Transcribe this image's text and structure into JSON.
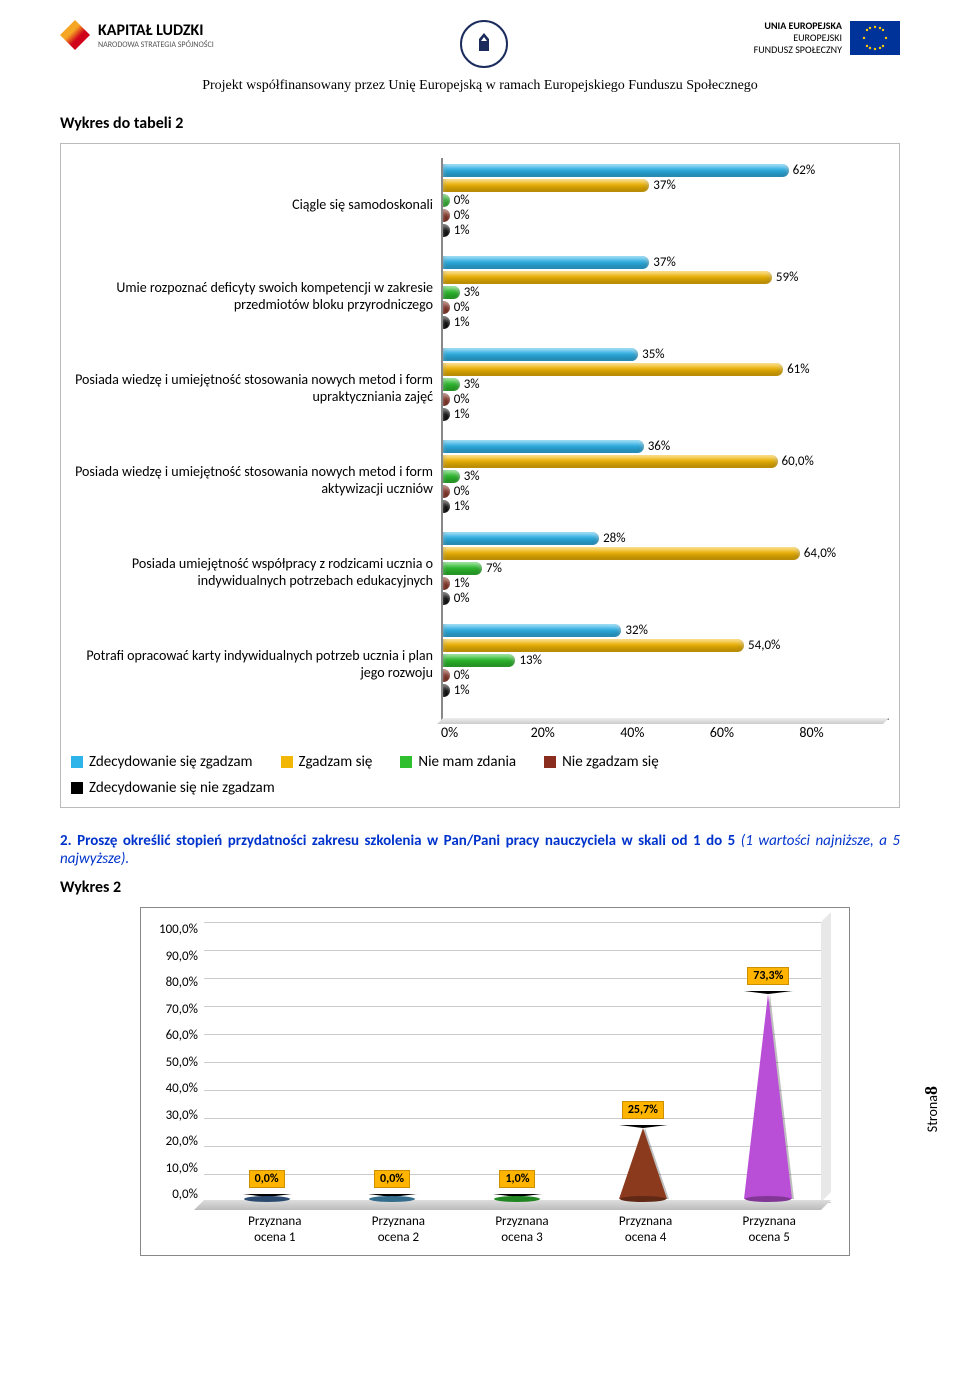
{
  "header": {
    "kl_title": "KAPITAŁ LUDZKI",
    "kl_sub": "NARODOWA STRATEGIA SPÓJNOŚCI",
    "eu_l1": "UNIA EUROPEJSKA",
    "eu_l2": "EUROPEJSKI",
    "eu_l3": "FUNDUSZ SPOŁECZNY",
    "subtitle": "Projekt współfinansowany przez Unię Europejską w ramach Europejskiego Funduszu Społecznego"
  },
  "chart1": {
    "title": "Wykres do tabeli 2",
    "xmax": 80,
    "xticks": [
      "0%",
      "20%",
      "40%",
      "60%",
      "80%"
    ],
    "series": [
      {
        "name": "Zdecydowanie się  zgadzam",
        "color": "#2fb4e9"
      },
      {
        "name": "Zgadzam się",
        "color": "#f2b705"
      },
      {
        "name": "Nie mam zdania",
        "color": "#2fbf2f"
      },
      {
        "name": "Nie zgadzam się",
        "color": "#8b2d1e"
      },
      {
        "name": "Zdecydowanie się nie zgadzam",
        "color": "#000000"
      }
    ],
    "groups": [
      {
        "label": "Ciągle się samodoskonali",
        "vals": [
          62,
          37,
          0,
          0,
          1
        ],
        "labels": [
          "62%",
          "37%",
          "0%",
          "0%",
          "1%"
        ]
      },
      {
        "label": "Umie rozpoznać deficyty swoich kompetencji w zakresie przedmiotów bloku przyrodniczego",
        "vals": [
          37,
          59,
          3,
          0,
          1
        ],
        "labels": [
          "37%",
          "59%",
          "3%",
          "0%",
          "1%"
        ]
      },
      {
        "label": "Posiada wiedzę i umiejętność stosowania nowych metod i form upraktyczniania zajęć",
        "vals": [
          35,
          61,
          3,
          0,
          1
        ],
        "labels": [
          "35%",
          "61%",
          "3%",
          "0%",
          "1%"
        ]
      },
      {
        "label": "Posiada wiedzę i umiejętność stosowania nowych metod i form aktywizacji uczniów",
        "vals": [
          36,
          60,
          3,
          0,
          1
        ],
        "labels": [
          "36%",
          "60,0%",
          "3%",
          "0%",
          "1%"
        ]
      },
      {
        "label": "Posiada umiejętność współpracy z rodzicami ucznia o indywidualnych potrzebach edukacyjnych",
        "vals": [
          28,
          64,
          7,
          1,
          0
        ],
        "labels": [
          "28%",
          "64,0%",
          "7%",
          "1%",
          "0%"
        ]
      },
      {
        "label": "Potrafi opracować karty indywidualnych potrzeb ucznia i plan jego rozwoju",
        "vals": [
          32,
          54,
          13,
          0,
          1
        ],
        "labels": [
          "32%",
          "54,0%",
          "13%",
          "0%",
          "1%"
        ]
      }
    ]
  },
  "q2": {
    "num": "2. ",
    "bold": "Proszę określić stopień przydatności zakresu szkolenia w Pan/Pani pracy nauczyciela w skali od 1 do 5 ",
    "ital": "(1 wartości najniższe, a 5 najwyższe)."
  },
  "chart2": {
    "title": "Wykres 2",
    "ymax": 100,
    "yticks": [
      "100,0%",
      "90,0%",
      "80,0%",
      "70,0%",
      "60,0%",
      "50,0%",
      "40,0%",
      "30,0%",
      "20,0%",
      "10,0%",
      "0,0%"
    ],
    "items": [
      {
        "label": "Przyznana ocena 1",
        "val": 0,
        "dl": "0,0%",
        "color": "#3c6aa0"
      },
      {
        "label": "Przyznana ocena 2",
        "val": 0,
        "dl": "0,0%",
        "color": "#4a9bc7"
      },
      {
        "label": "Przyznana ocena 3",
        "val": 1,
        "dl": "1,0%",
        "color": "#2fbf2f"
      },
      {
        "label": "Przyznana ocena 4",
        "val": 25.7,
        "dl": "25,7%",
        "color": "#8b3a1e"
      },
      {
        "label": "Przyznana ocena 5",
        "val": 73.3,
        "dl": "73,3%",
        "color": "#b94fd6"
      }
    ]
  },
  "page_label": "Strona",
  "page_num": "8"
}
